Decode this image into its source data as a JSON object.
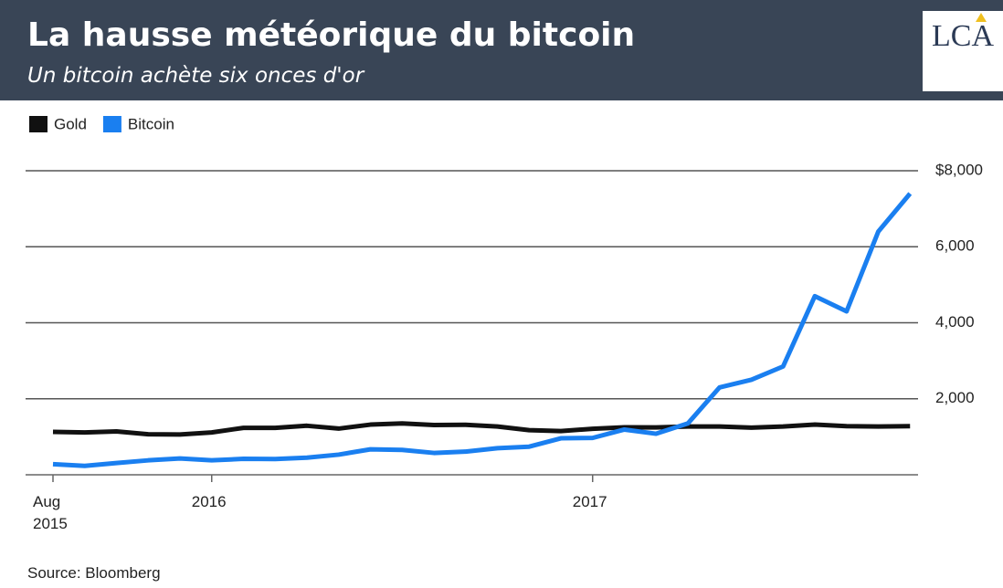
{
  "logo": "LCA",
  "chart_data": {
    "type": "line",
    "title": "La hausse météorique du bitcoin",
    "subtitle": "Un bitcoin achète six onces d'or",
    "source": "Source: Bloomberg",
    "x": [
      "2015-08",
      "2015-09",
      "2015-10",
      "2015-11",
      "2015-12",
      "2016-01",
      "2016-02",
      "2016-03",
      "2016-04",
      "2016-05",
      "2016-06",
      "2016-07",
      "2016-08",
      "2016-09",
      "2016-10",
      "2016-11",
      "2016-12",
      "2017-01",
      "2017-02",
      "2017-03",
      "2017-04",
      "2017-05",
      "2017-06",
      "2017-07",
      "2017-08",
      "2017-09",
      "2017-10",
      "2017-11"
    ],
    "series": [
      {
        "name": "Gold",
        "color": "#111111",
        "values": [
          1130,
          1115,
          1140,
          1065,
          1060,
          1115,
          1235,
          1235,
          1290,
          1215,
          1320,
          1350,
          1310,
          1315,
          1270,
          1175,
          1150,
          1210,
          1250,
          1245,
          1270,
          1270,
          1240,
          1270,
          1320,
          1280,
          1270,
          1280
        ]
      },
      {
        "name": "Bitcoin",
        "color": "#1a7ff0",
        "values": [
          280,
          235,
          310,
          380,
          430,
          380,
          420,
          415,
          450,
          530,
          670,
          655,
          575,
          610,
          700,
          740,
          960,
          970,
          1190,
          1080,
          1350,
          2300,
          2500,
          2850,
          4700,
          4300,
          6400,
          7400
        ]
      }
    ],
    "xlim": [
      "2015-08",
      "2017-11"
    ],
    "xticks": [
      {
        "value": "2015-08",
        "label": "Aug 2015"
      },
      {
        "value": "2016-01",
        "label": "2016"
      },
      {
        "value": "2017-01",
        "label": "2017"
      }
    ],
    "ylim": [
      0,
      8000
    ],
    "yticks": [
      {
        "value": 2000,
        "label": "2,000"
      },
      {
        "value": 4000,
        "label": "4,000"
      },
      {
        "value": 6000,
        "label": "6,000"
      },
      {
        "value": 8000,
        "label": "$8,000"
      }
    ],
    "grid": true,
    "legend": "top-left"
  }
}
